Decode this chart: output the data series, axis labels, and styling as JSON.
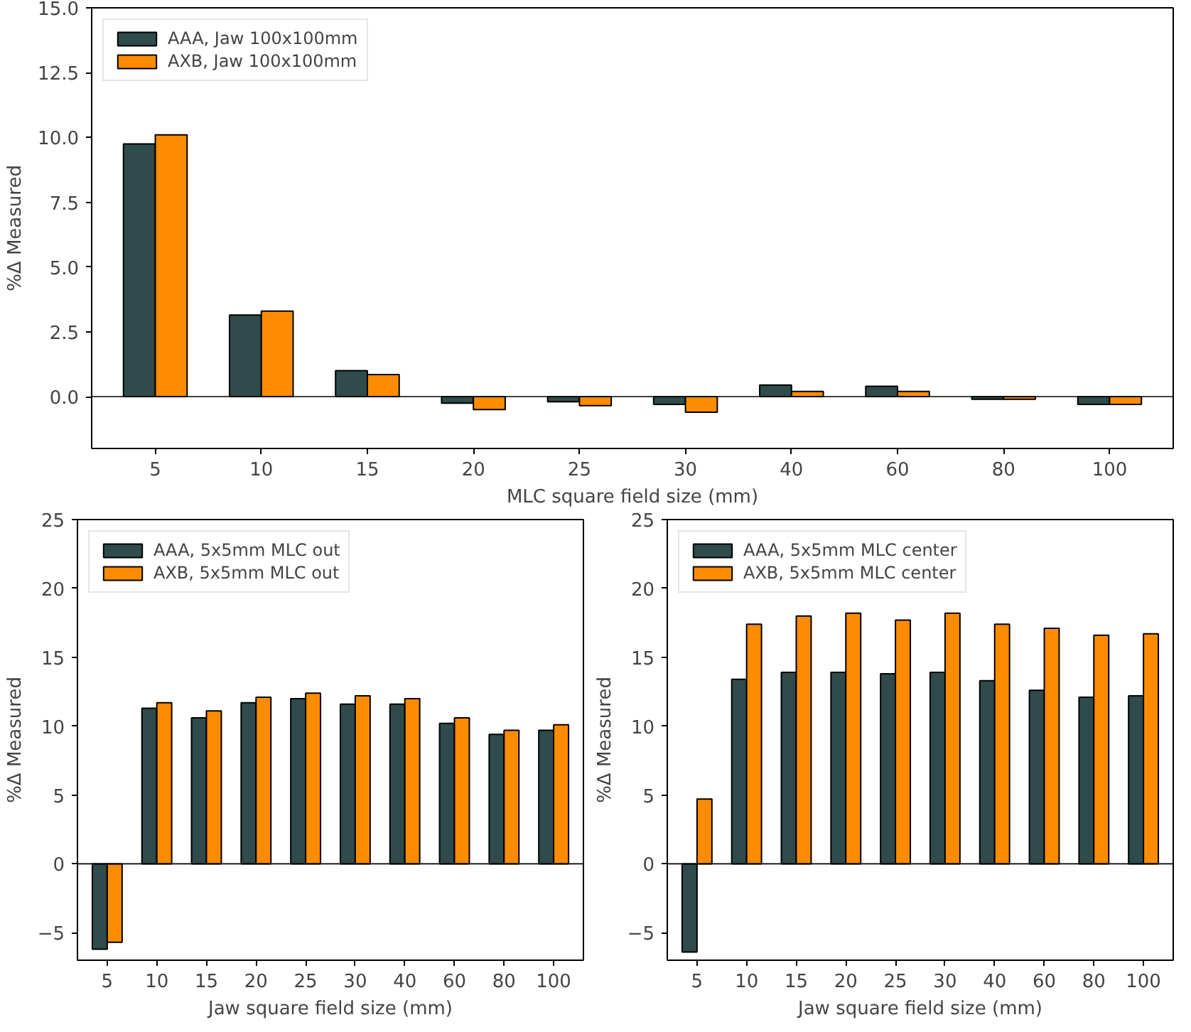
{
  "chart_data": [
    {
      "type": "bar",
      "xlabel": "MLC square field size (mm)",
      "ylabel": "%Δ Measured",
      "categories": [
        "5",
        "10",
        "15",
        "20",
        "25",
        "30",
        "40",
        "60",
        "80",
        "100"
      ],
      "series": [
        {
          "name": "AAA, Jaw 100x100mm",
          "color": "#2f4b4b",
          "values": [
            9.75,
            3.15,
            1.0,
            -0.25,
            -0.2,
            -0.3,
            0.45,
            0.4,
            -0.1,
            -0.3
          ]
        },
        {
          "name": "AXB, Jaw 100x100mm",
          "color": "#ff8c00",
          "values": [
            10.1,
            3.3,
            0.85,
            -0.5,
            -0.35,
            -0.6,
            0.2,
            0.2,
            -0.1,
            -0.3
          ]
        }
      ],
      "ylim": [
        -2,
        15
      ],
      "yticks": [
        {
          "value": 0,
          "label": "0.0"
        },
        {
          "value": 2.5,
          "label": "2.5"
        },
        {
          "value": 5,
          "label": "5.0"
        },
        {
          "value": 7.5,
          "label": "7.5"
        },
        {
          "value": 10,
          "label": "10.0"
        },
        {
          "value": 12.5,
          "label": "12.5"
        },
        {
          "value": 15,
          "label": "15.0"
        }
      ],
      "ref_lines": [
        {
          "axis": "y",
          "value": 0,
          "color": "#000000"
        }
      ],
      "legend": "top left",
      "grid": false
    },
    {
      "type": "bar",
      "xlabel": "Jaw square field size (mm)",
      "ylabel": "%Δ Measured",
      "categories": [
        "5",
        "10",
        "15",
        "20",
        "25",
        "30",
        "40",
        "60",
        "80",
        "100"
      ],
      "series": [
        {
          "name": "AAA, 5x5mm MLC out",
          "color": "#2f4b4b",
          "values": [
            -6.2,
            11.3,
            10.6,
            11.7,
            12.0,
            11.6,
            11.6,
            10.2,
            9.4,
            9.7
          ]
        },
        {
          "name": "AXB, 5x5mm MLC out",
          "color": "#ff8c00",
          "values": [
            -5.7,
            11.7,
            11.1,
            12.1,
            12.4,
            12.2,
            12.0,
            10.6,
            9.7,
            10.1
          ]
        }
      ],
      "ylim": [
        -7,
        25
      ],
      "yticks": [
        {
          "value": -5,
          "label": "−5"
        },
        0,
        5,
        10,
        15,
        20,
        25
      ],
      "ref_lines": [
        {
          "axis": "y",
          "value": 0,
          "color": "#000000"
        }
      ],
      "legend": "top left",
      "grid": false
    },
    {
      "type": "bar",
      "xlabel": "Jaw square field size (mm)",
      "ylabel": "%Δ Measured",
      "categories": [
        "5",
        "10",
        "15",
        "20",
        "25",
        "30",
        "40",
        "60",
        "80",
        "100"
      ],
      "series": [
        {
          "name": "AAA, 5x5mm MLC center",
          "color": "#2f4b4b",
          "values": [
            -6.4,
            13.4,
            13.9,
            13.9,
            13.8,
            13.9,
            13.3,
            12.6,
            12.1,
            12.2
          ]
        },
        {
          "name": "AXB, 5x5mm MLC center",
          "color": "#ff8c00",
          "values": [
            4.7,
            17.4,
            18.0,
            18.2,
            17.7,
            18.2,
            17.4,
            17.1,
            16.6,
            16.7
          ]
        }
      ],
      "ylim": [
        -7,
        25
      ],
      "yticks": [
        {
          "value": -5,
          "label": "−5"
        },
        0,
        5,
        10,
        15,
        20,
        25
      ],
      "ref_lines": [
        {
          "axis": "y",
          "value": 0,
          "color": "#000000"
        }
      ],
      "legend": "top left",
      "grid": false
    }
  ]
}
